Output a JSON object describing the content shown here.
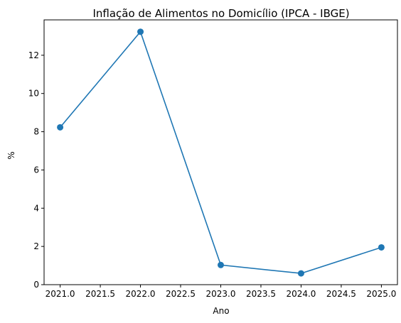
{
  "chart_data": {
    "type": "line",
    "title": "Inflação de Alimentos no Domicílio (IPCA - IBGE)",
    "xlabel": "Ano",
    "ylabel": "%",
    "xlim": [
      2020.8,
      2025.2
    ],
    "ylim": [
      0,
      13.85
    ],
    "xticks": [
      2021.0,
      2021.5,
      2022.0,
      2022.5,
      2023.0,
      2023.5,
      2024.0,
      2024.5,
      2025.0
    ],
    "xtick_labels": [
      "2021.0",
      "2021.5",
      "2022.0",
      "2022.5",
      "2023.0",
      "2023.5",
      "2024.0",
      "2024.5",
      "2025.0"
    ],
    "yticks": [
      0,
      2,
      4,
      6,
      8,
      10,
      12
    ],
    "ytick_labels": [
      "0",
      "2",
      "4",
      "6",
      "8",
      "10",
      "12"
    ],
    "grid": false,
    "color": "#1f77b4",
    "series": [
      {
        "x": [
          2021,
          2022,
          2023,
          2024,
          2025
        ],
        "values": [
          8.23,
          13.23,
          1.03,
          0.59,
          1.95
        ]
      }
    ]
  }
}
